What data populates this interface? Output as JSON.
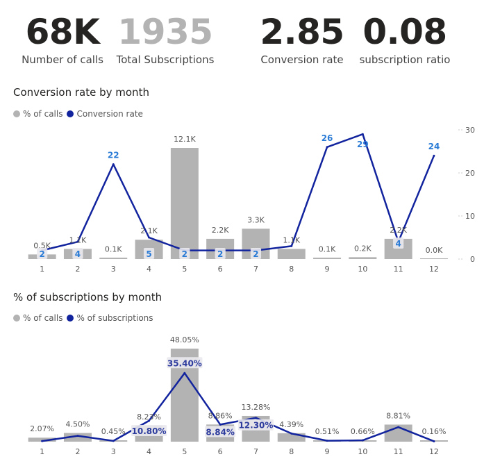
{
  "kpis": [
    {
      "value": "68K",
      "label": "Number of calls",
      "color": "#252423"
    },
    {
      "value": "1935",
      "label": "Total Subscriptions",
      "color": "#b3b3b3"
    },
    {
      "value": "2.85",
      "label": "Conversion rate",
      "color": "#252423"
    },
    {
      "value": "0.08",
      "label": "subscription ratio",
      "color": "#252423"
    }
  ],
  "chart_data": [
    {
      "type": "bar",
      "title": "Conversion rate by month",
      "legend": [
        "% of calls",
        "Conversion rate"
      ],
      "legend_placement": "top-left",
      "categories": [
        "1",
        "2",
        "3",
        "4",
        "5",
        "6",
        "7",
        "8",
        "9",
        "10",
        "11",
        "12"
      ],
      "series": [
        {
          "name": "% of calls",
          "kind": "bar",
          "color": "#b3b3b3",
          "values": [
            0.5,
            1.1,
            0.1,
            2.1,
            12.1,
            2.2,
            3.3,
            1.1,
            0.1,
            0.2,
            2.2,
            0.0
          ],
          "labels": [
            "0.5K",
            "1.1K",
            "0.1K",
            "2.1K",
            "12.1K",
            "2.2K",
            "3.3K",
            "1.1K",
            "0.1K",
            "0.2K",
            "2.2K",
            "0.0K"
          ]
        },
        {
          "name": "Conversion rate",
          "kind": "line",
          "color": "#12239e",
          "values": [
            2,
            4,
            22,
            5,
            2,
            2,
            2,
            3,
            26,
            29,
            4,
            24
          ],
          "labels": [
            "2",
            "4",
            "22",
            "5",
            "2",
            "2",
            "2",
            "",
            "26",
            "29",
            "4",
            "24"
          ]
        }
      ],
      "y_secondary_ticks": [
        "30",
        "20",
        "10",
        "0"
      ],
      "y_secondary_range": [
        0,
        30
      ]
    },
    {
      "type": "bar",
      "title": "% of subscriptions by month",
      "legend": [
        "% of calls",
        "% of subscriptions"
      ],
      "legend_placement": "top-left",
      "categories": [
        "1",
        "2",
        "3",
        "4",
        "5",
        "6",
        "7",
        "8",
        "9",
        "10",
        "11",
        "12"
      ],
      "series": [
        {
          "name": "% of calls",
          "kind": "bar",
          "color": "#b3b3b3",
          "values": [
            2.07,
            4.5,
            0.45,
            8.23,
            48.05,
            8.86,
            13.28,
            4.39,
            0.51,
            0.66,
            8.81,
            0.16
          ],
          "labels": [
            "2.07%",
            "4.50%",
            "0.45%",
            "8.23%",
            "48.05%",
            "8.86%",
            "13.28%",
            "4.39%",
            "0.51%",
            "0.66%",
            "8.81%",
            "0.16%"
          ]
        },
        {
          "name": "% of subscriptions",
          "kind": "line",
          "color": "#12239e",
          "values": [
            0.3,
            3.0,
            0.4,
            10.8,
            35.4,
            8.84,
            12.3,
            4.2,
            0.5,
            0.7,
            7.5,
            0.2
          ],
          "labels": [
            "",
            "",
            "",
            "10.80%",
            "35.40%",
            "8.84%",
            "12.30%",
            "",
            "",
            "",
            "",
            ""
          ]
        }
      ]
    }
  ]
}
